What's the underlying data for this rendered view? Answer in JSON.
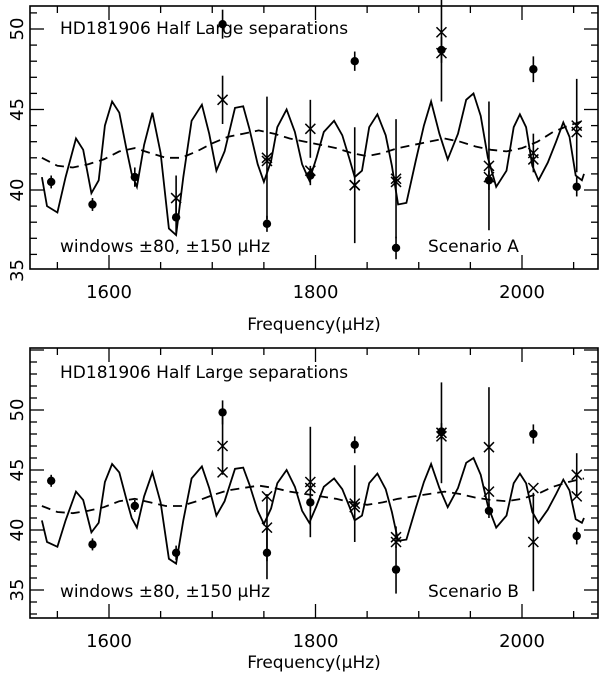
{
  "chart_data": [
    {
      "type": "scatter",
      "title": "HD181906 Half Large separations",
      "note_left": "windows ±80, ±150 μHz",
      "note_right": "Scenario A",
      "xlabel": "Frequency(μHz)",
      "ylabel": "",
      "xlim": [
        1535,
        2060
      ],
      "ylim": [
        32,
        55
      ],
      "xticks": [
        1600,
        1800,
        2000
      ],
      "yticks": [
        35,
        40,
        45,
        50
      ],
      "grid": false,
      "series": [
        {
          "marker": "dot",
          "x": [
            1544,
            1584,
            1625,
            1665,
            1710,
            1753,
            1795,
            1838,
            1878,
            1922,
            1968,
            2011,
            2053
          ],
          "y": [
            40.5,
            39.1,
            40.8,
            38.3,
            50.3,
            37.9,
            40.9,
            48.0,
            36.4,
            48.7,
            40.6,
            47.5,
            40.2
          ],
          "err": [
            0.4,
            0.4,
            0.6,
            1.1,
            0.9,
            0.5,
            0.6,
            0.6,
            0.7,
            0.8,
            0.6,
            0.8,
            0.6
          ]
        },
        {
          "marker": "cross",
          "x": [
            1665,
            1710,
            1753,
            1795,
            1838,
            1878,
            1922,
            1968,
            2011,
            2053
          ],
          "y": [
            39.5,
            45.6,
            42.0,
            43.8,
            40.3,
            40.7,
            49.8,
            41.5,
            42.3,
            44.0
          ],
          "err": [
            1.4,
            1.5,
            3.8,
            1.8,
            3.6,
            3.7,
            4.3,
            4.0,
            1.2,
            2.9
          ]
        },
        {
          "marker": "cross",
          "x": [
            1753,
            1795,
            1838,
            1878,
            1922,
            1968,
            2011,
            2053
          ],
          "y": [
            41.8,
            41.2,
            40.3,
            40.5,
            48.5,
            40.8,
            41.9,
            43.6
          ],
          "err": [
            0,
            0,
            0,
            0,
            0,
            0,
            0,
            0
          ]
        }
      ],
      "curves": [
        {
          "style": "solid",
          "x": [
            1535,
            1540,
            1550,
            1558,
            1568,
            1575,
            1583,
            1590,
            1596,
            1603,
            1610,
            1617,
            1622,
            1627,
            1634,
            1642,
            1650,
            1658,
            1665,
            1672,
            1680,
            1690,
            1697,
            1704,
            1712,
            1722,
            1730,
            1736,
            1744,
            1750,
            1757,
            1763,
            1772,
            1780,
            1787,
            1794,
            1801,
            1808,
            1818,
            1826,
            1833,
            1838,
            1845,
            1852,
            1860,
            1868,
            1874,
            1880,
            1888,
            1897,
            1905,
            1912,
            1920,
            1928,
            1938,
            1946,
            1953,
            1960,
            1967,
            1975,
            1985,
            1992,
            1998,
            2004,
            2010,
            2016,
            2025,
            2033,
            2040,
            2046,
            2052,
            2058,
            2060
          ],
          "y": [
            40.8,
            39.0,
            38.6,
            40.8,
            43.2,
            42.5,
            39.8,
            40.6,
            44.0,
            45.5,
            44.8,
            42.5,
            41.0,
            40.2,
            42.8,
            44.8,
            42.3,
            37.6,
            37.2,
            40.8,
            44.3,
            45.3,
            43.5,
            41.2,
            42.4,
            45.1,
            45.2,
            43.8,
            41.6,
            40.5,
            41.8,
            43.9,
            45.0,
            43.6,
            41.6,
            40.6,
            42.0,
            43.6,
            44.3,
            43.4,
            41.9,
            40.8,
            41.2,
            43.9,
            44.7,
            43.4,
            41.5,
            39.1,
            39.2,
            41.8,
            44.0,
            45.5,
            43.5,
            41.9,
            43.5,
            45.6,
            46.0,
            44.6,
            42.0,
            40.2,
            41.2,
            43.9,
            44.7,
            43.9,
            41.5,
            40.6,
            41.7,
            43.0,
            44.2,
            43.3,
            40.9,
            40.6,
            41.0
          ]
        },
        {
          "style": "dashed",
          "x": [
            1535,
            1550,
            1565,
            1580,
            1595,
            1610,
            1625,
            1640,
            1655,
            1670,
            1685,
            1700,
            1715,
            1730,
            1745,
            1760,
            1775,
            1790,
            1805,
            1820,
            1835,
            1850,
            1865,
            1880,
            1895,
            1910,
            1925,
            1940,
            1955,
            1970,
            1985,
            2000,
            2015,
            2030,
            2045,
            2060
          ],
          "y": [
            42.0,
            41.5,
            41.4,
            41.6,
            41.9,
            42.4,
            42.6,
            42.3,
            42.0,
            42.0,
            42.4,
            42.9,
            43.3,
            43.5,
            43.7,
            43.5,
            43.2,
            43.0,
            42.8,
            42.6,
            42.3,
            42.1,
            42.3,
            42.6,
            42.8,
            43.0,
            43.2,
            43.0,
            42.7,
            42.5,
            42.4,
            42.6,
            43.0,
            43.6,
            44.0,
            44.3
          ]
        }
      ]
    },
    {
      "type": "scatter",
      "title": "HD181906 Half Large separations",
      "note_left": "windows ±80, ±150 μHz",
      "note_right": "Scenario B",
      "xlabel": "Frequency(μHz)",
      "ylabel": "",
      "xlim": [
        1535,
        2060
      ],
      "ylim": [
        32,
        55
      ],
      "xticks": [
        1600,
        1800,
        2000
      ],
      "yticks": [
        35,
        40,
        45,
        50
      ],
      "grid": false,
      "series": [
        {
          "marker": "dot",
          "x": [
            1544,
            1584,
            1625,
            1665,
            1710,
            1753,
            1795,
            1838,
            1878,
            1922,
            1968,
            2011,
            2053
          ],
          "y": [
            44.1,
            38.8,
            42.0,
            38.1,
            49.8,
            38.1,
            42.3,
            47.1,
            36.7,
            48.2,
            41.6,
            48.0,
            39.5
          ],
          "err": [
            0.5,
            0.5,
            0.5,
            0.6,
            1.0,
            2.2,
            0.7,
            0.7,
            2.0,
            0.7,
            0.6,
            0.8,
            0.7
          ]
        },
        {
          "marker": "cross",
          "x": [
            1710,
            1753,
            1795,
            1838,
            1878,
            1922,
            1968,
            2011,
            2053
          ],
          "y": [
            47.0,
            40.2,
            44.0,
            42.2,
            39.4,
            48.1,
            46.9,
            39.0,
            44.6
          ],
          "err": [
            2.4,
            2.8,
            4.6,
            3.2,
            0.9,
            4.2,
            5.0,
            4.1,
            1.8
          ]
        },
        {
          "marker": "cross",
          "x": [
            1710,
            1753,
            1795,
            1838,
            1878,
            1922,
            1968,
            2011,
            2053
          ],
          "y": [
            44.8,
            42.8,
            43.5,
            41.9,
            39.0,
            47.8,
            43.2,
            43.5,
            42.8
          ],
          "err": [
            0,
            0,
            0,
            0,
            0,
            0,
            0,
            0,
            0
          ]
        }
      ],
      "curves": [
        {
          "style": "solid",
          "x": [
            1535,
            1540,
            1550,
            1558,
            1568,
            1575,
            1583,
            1590,
            1596,
            1603,
            1610,
            1617,
            1622,
            1627,
            1634,
            1642,
            1650,
            1658,
            1665,
            1672,
            1680,
            1690,
            1697,
            1704,
            1712,
            1722,
            1730,
            1736,
            1744,
            1750,
            1757,
            1763,
            1772,
            1780,
            1787,
            1794,
            1801,
            1808,
            1818,
            1826,
            1833,
            1838,
            1845,
            1852,
            1860,
            1868,
            1874,
            1880,
            1888,
            1897,
            1905,
            1912,
            1920,
            1928,
            1938,
            1946,
            1953,
            1960,
            1967,
            1975,
            1985,
            1992,
            1998,
            2004,
            2010,
            2016,
            2025,
            2033,
            2040,
            2046,
            2052,
            2058,
            2060
          ],
          "y": [
            40.8,
            39.0,
            38.6,
            40.8,
            43.2,
            42.5,
            39.8,
            40.6,
            44.0,
            45.5,
            44.8,
            42.5,
            41.0,
            40.2,
            42.8,
            44.8,
            42.3,
            37.6,
            37.2,
            40.8,
            44.3,
            45.3,
            43.5,
            41.2,
            42.4,
            45.1,
            45.2,
            43.8,
            41.6,
            40.5,
            41.8,
            43.9,
            45.0,
            43.6,
            41.6,
            40.6,
            42.0,
            43.6,
            44.3,
            43.4,
            41.9,
            40.8,
            41.2,
            43.9,
            44.7,
            43.4,
            41.5,
            39.1,
            39.2,
            41.8,
            44.0,
            45.5,
            43.5,
            41.9,
            43.5,
            45.6,
            46.0,
            44.6,
            42.0,
            40.2,
            41.2,
            43.9,
            44.7,
            43.9,
            41.5,
            40.6,
            41.7,
            43.0,
            44.2,
            43.3,
            40.9,
            40.6,
            41.0
          ]
        },
        {
          "style": "dashed",
          "x": [
            1535,
            1550,
            1565,
            1580,
            1595,
            1610,
            1625,
            1640,
            1655,
            1670,
            1685,
            1700,
            1715,
            1730,
            1745,
            1760,
            1775,
            1790,
            1805,
            1820,
            1835,
            1850,
            1865,
            1880,
            1895,
            1910,
            1925,
            1940,
            1955,
            1970,
            1985,
            2000,
            2015,
            2030,
            2045,
            2060
          ],
          "y": [
            42.0,
            41.5,
            41.4,
            41.6,
            41.9,
            42.4,
            42.6,
            42.3,
            42.0,
            42.0,
            42.4,
            42.9,
            43.3,
            43.5,
            43.7,
            43.5,
            43.2,
            43.0,
            42.8,
            42.6,
            42.3,
            42.1,
            42.3,
            42.6,
            42.8,
            43.0,
            43.2,
            43.0,
            42.7,
            42.5,
            42.4,
            42.6,
            43.0,
            43.6,
            44.0,
            44.3
          ]
        }
      ]
    }
  ]
}
